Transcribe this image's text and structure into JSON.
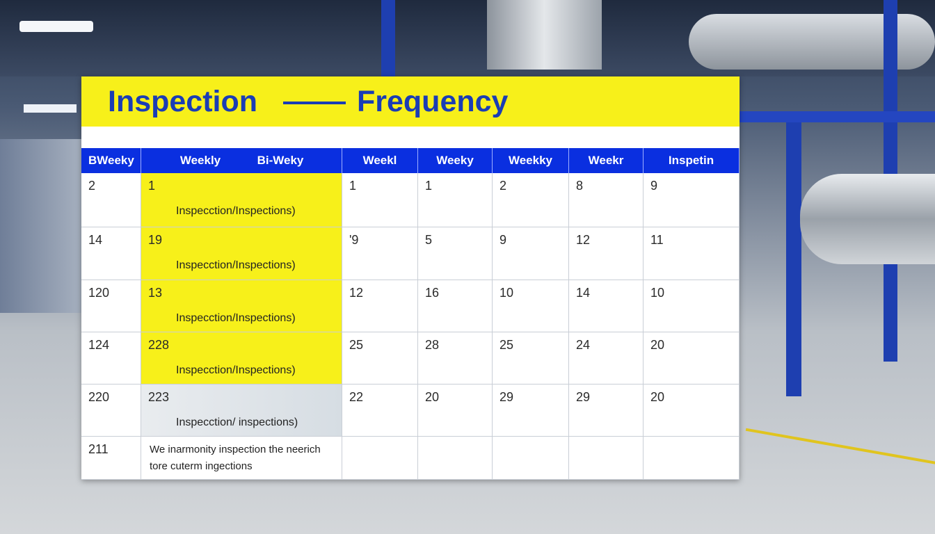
{
  "header": {
    "title_left": "Inspection",
    "title_right": "Frequency"
  },
  "table": {
    "columns": [
      "BWeeky",
      "Weekly",
      "Bi-Weky",
      "Weekl",
      "Weeky",
      "Weekky",
      "Weekr",
      "Inspetin"
    ],
    "rows": [
      {
        "first": 2,
        "main": 1,
        "note": "Inspecction/Inspections)",
        "values": [
          1,
          1,
          2,
          8,
          9
        ]
      },
      {
        "first": 14,
        "main": 19,
        "note": "Inspecction/Inspections)",
        "values": [
          "'9",
          5,
          9,
          12,
          11
        ]
      },
      {
        "first": 120,
        "main": 13,
        "note": "Inspecction/Inspections)",
        "values": [
          12,
          16,
          10,
          14,
          10
        ]
      },
      {
        "first": 124,
        "main": 228,
        "note": "Inspecction/Inspections)",
        "values": [
          25,
          28,
          25,
          24,
          20
        ]
      },
      {
        "first": 220,
        "main": 223,
        "note": "Inspecction/ inspections)",
        "values": [
          22,
          20,
          29,
          29,
          20
        ]
      },
      {
        "first": 211,
        "note_lines": [
          "We inarmonity inspection the neerich",
          "tore cuterm ingections"
        ]
      }
    ]
  }
}
